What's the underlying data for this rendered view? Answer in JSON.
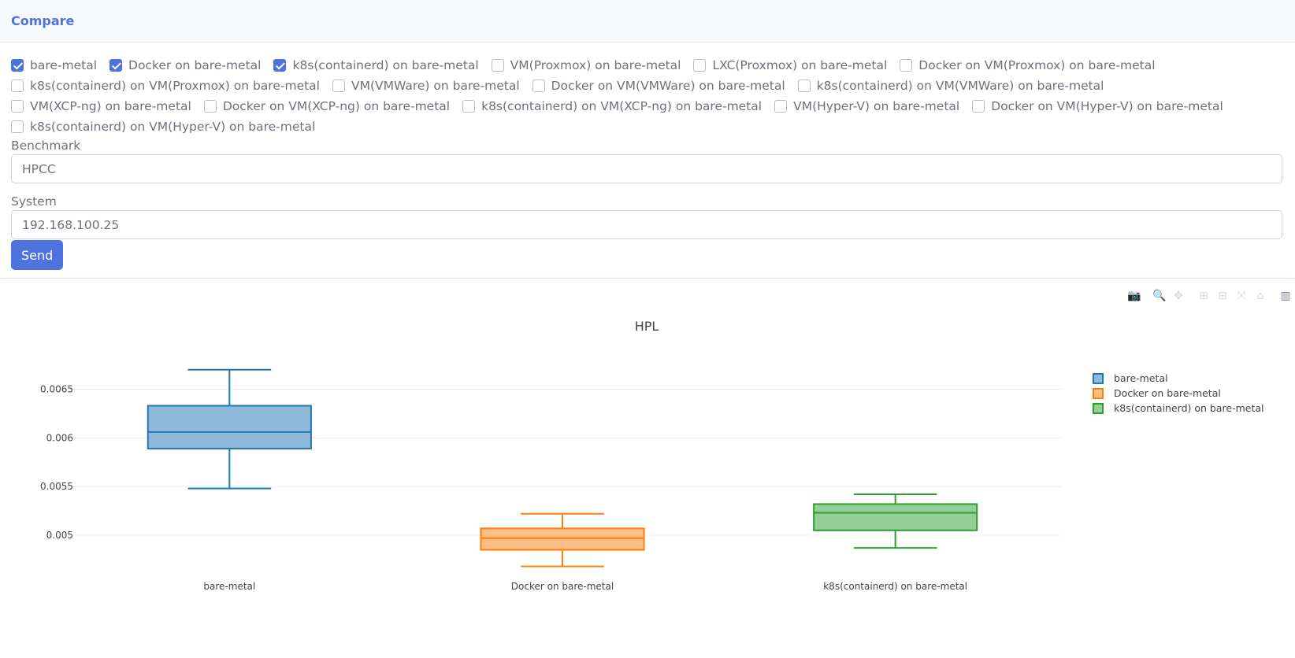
{
  "header": {
    "title": "Compare"
  },
  "platforms": [
    {
      "label": "bare-metal",
      "checked": true
    },
    {
      "label": "Docker on bare-metal",
      "checked": true
    },
    {
      "label": "k8s(containerd) on bare-metal",
      "checked": true
    },
    {
      "label": "VM(Proxmox) on bare-metal",
      "checked": false
    },
    {
      "label": "LXC(Proxmox) on bare-metal",
      "checked": false
    },
    {
      "label": "Docker on VM(Proxmox) on bare-metal",
      "checked": false
    },
    {
      "label": "k8s(containerd) on VM(Proxmox) on bare-metal",
      "checked": false
    },
    {
      "label": "VM(VMWare) on bare-metal",
      "checked": false
    },
    {
      "label": "Docker on VM(VMWare) on bare-metal",
      "checked": false
    },
    {
      "label": "k8s(containerd) on VM(VMWare) on bare-metal",
      "checked": false
    },
    {
      "label": "VM(XCP-ng) on bare-metal",
      "checked": false
    },
    {
      "label": "Docker on VM(XCP-ng) on bare-metal",
      "checked": false
    },
    {
      "label": "k8s(containerd) on VM(XCP-ng) on bare-metal",
      "checked": false
    },
    {
      "label": "VM(Hyper-V) on bare-metal",
      "checked": false
    },
    {
      "label": "Docker on VM(Hyper-V) on bare-metal",
      "checked": false
    },
    {
      "label": "k8s(containerd) on VM(Hyper-V) on bare-metal",
      "checked": false
    }
  ],
  "form": {
    "benchmark_label": "Benchmark",
    "benchmark_value": "HPCC",
    "system_label": "System",
    "system_value": "192.168.100.25",
    "send_label": "Send"
  },
  "modebar": [
    "camera-icon",
    "zoom-icon",
    "pan-icon",
    "zoom-in-icon",
    "zoom-out-icon",
    "autoscale-icon",
    "reset-axes-icon",
    "plotly-logo-icon"
  ],
  "chart_data": {
    "type": "box",
    "title": "HPL",
    "categories": [
      "bare-metal",
      "Docker on bare-metal",
      "k8s(containerd) on bare-metal"
    ],
    "ylim": [
      0.00462,
      0.0069
    ],
    "yticks": [
      {
        "value": 0.005,
        "label": "0.005"
      },
      {
        "value": 0.0055,
        "label": "0.0055"
      },
      {
        "value": 0.006,
        "label": "0.006"
      },
      {
        "value": 0.0065,
        "label": "0.0065"
      }
    ],
    "grid": true,
    "legend_position": "top-right",
    "series": [
      {
        "name": "bare-metal",
        "color": "#1f77b4",
        "fill": "#8fb9da",
        "min": 0.00548,
        "q1": 0.00589,
        "median": 0.00606,
        "q3": 0.00633,
        "max": 0.0067
      },
      {
        "name": "Docker on bare-metal",
        "color": "#ff7f0e",
        "fill": "#ffbf87",
        "min": 0.00468,
        "q1": 0.00485,
        "median": 0.00497,
        "q3": 0.00507,
        "max": 0.00522
      },
      {
        "name": "k8s(containerd) on bare-metal",
        "color": "#2ca02c",
        "fill": "#95cf95",
        "min": 0.00487,
        "q1": 0.00505,
        "median": 0.00523,
        "q3": 0.00532,
        "max": 0.00542
      }
    ]
  }
}
